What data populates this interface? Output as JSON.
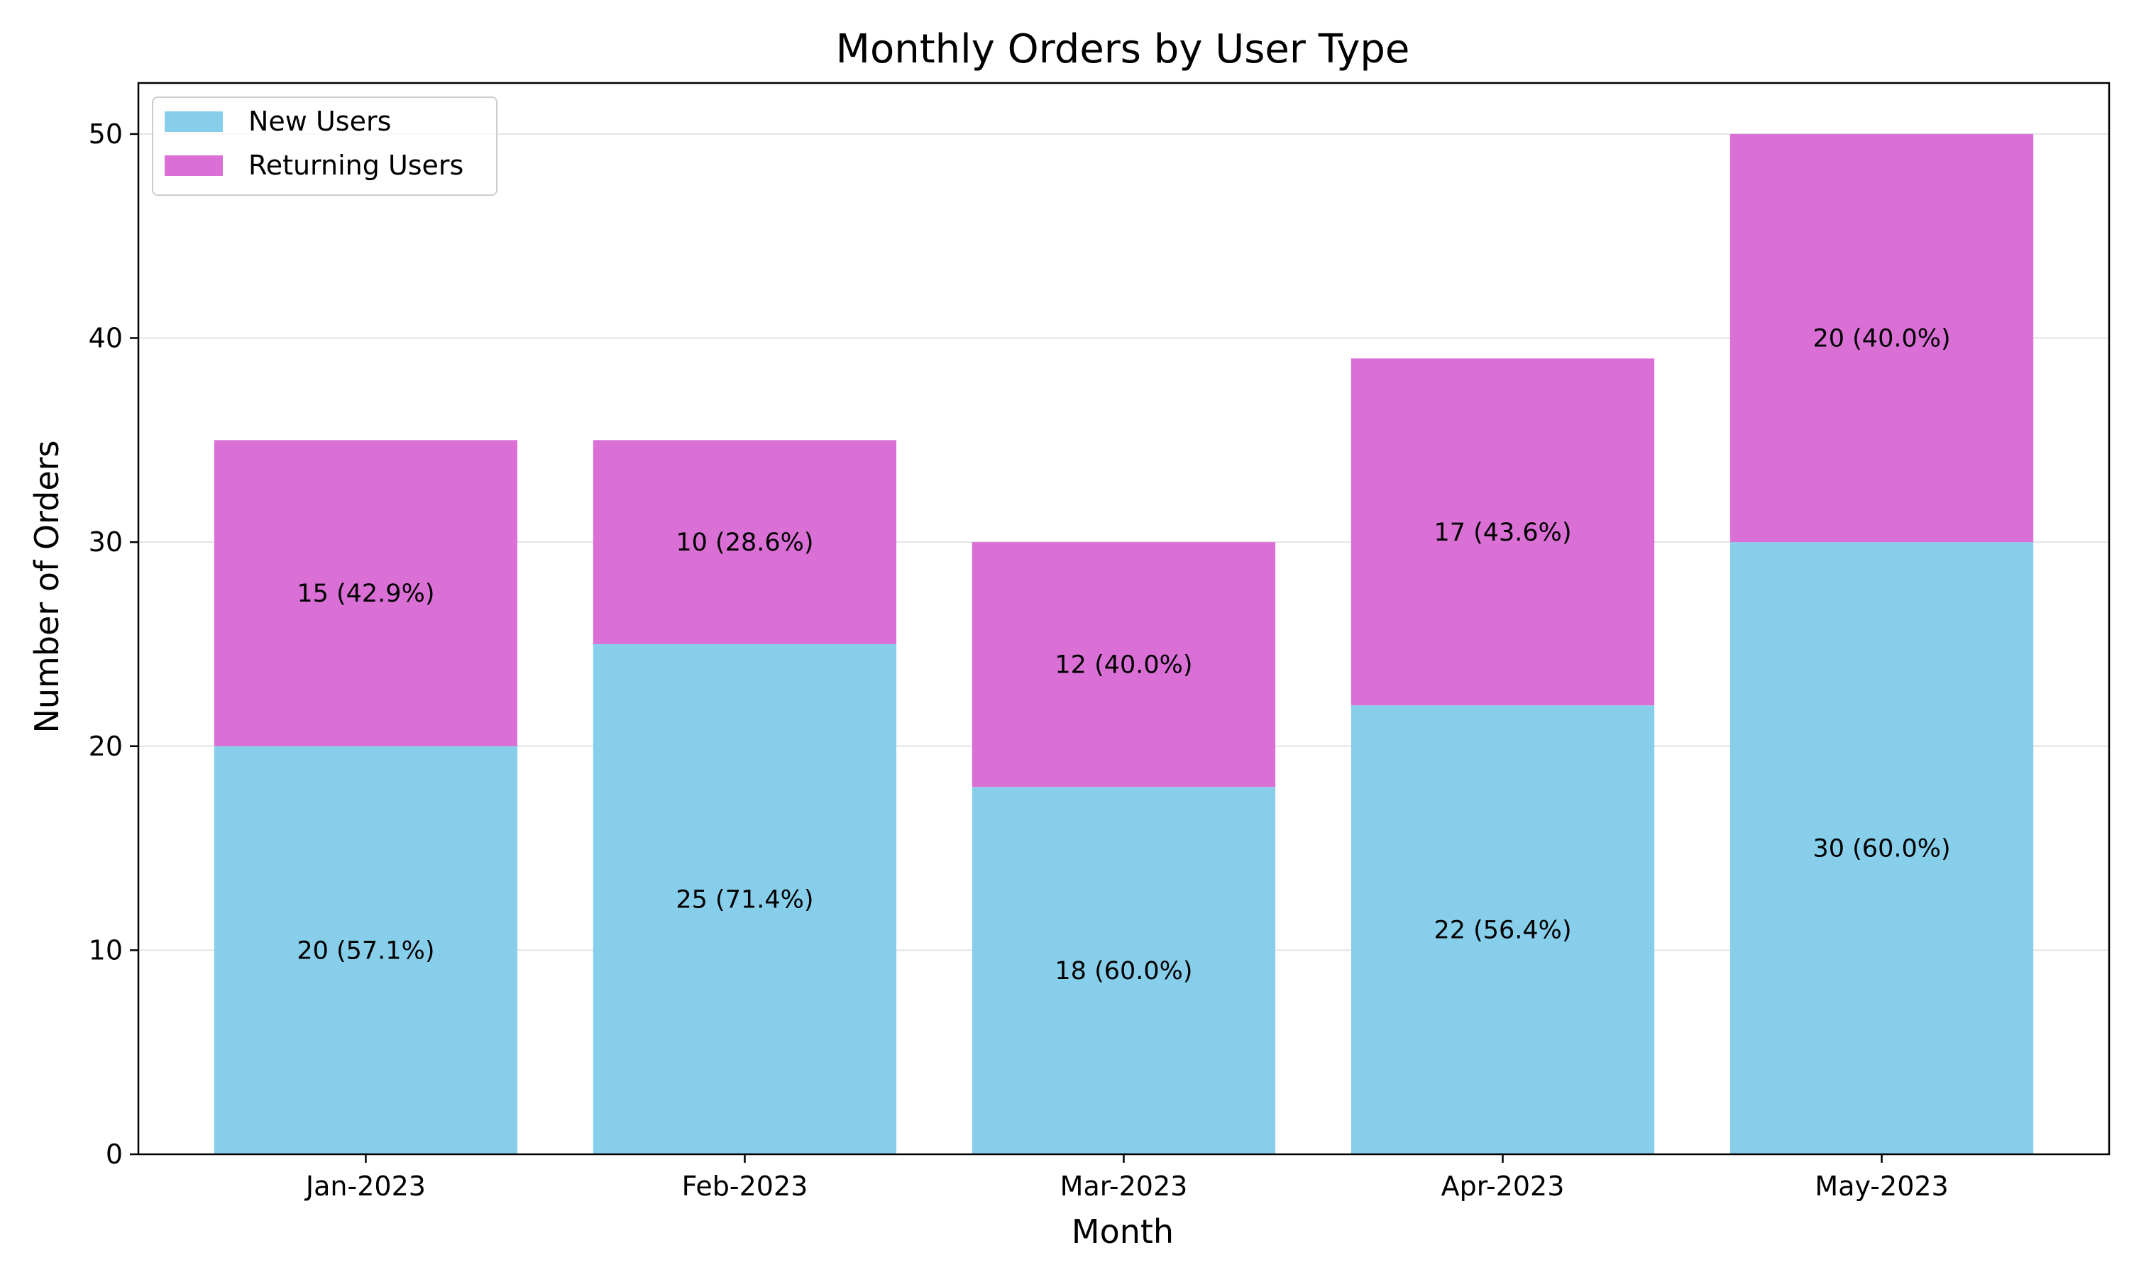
{
  "chart_data": {
    "type": "bar",
    "stacked": true,
    "title": "Monthly Orders by User Type",
    "xlabel": "Month",
    "ylabel": "Number of Orders",
    "categories": [
      "Jan-2023",
      "Feb-2023",
      "Mar-2023",
      "Apr-2023",
      "May-2023"
    ],
    "series": [
      {
        "name": "New Users",
        "color": "#87ceeb",
        "values": [
          20,
          25,
          18,
          22,
          30
        ],
        "labels": [
          "20 (57.1%)",
          "25 (71.4%)",
          "18 (60.0%)",
          "22 (56.4%)",
          "30 (60.0%)"
        ]
      },
      {
        "name": "Returning Users",
        "color": "#da70d6",
        "values": [
          15,
          10,
          12,
          17,
          20
        ],
        "labels": [
          "15 (42.9%)",
          "10 (28.6%)",
          "12 (40.0%)",
          "17 (43.6%)",
          "20 (40.0%)"
        ]
      }
    ],
    "ylim": [
      0,
      52.5
    ],
    "yticks": [
      0,
      10,
      20,
      30,
      40,
      50
    ],
    "grid": "horizontal",
    "legend_position": "top-left"
  }
}
